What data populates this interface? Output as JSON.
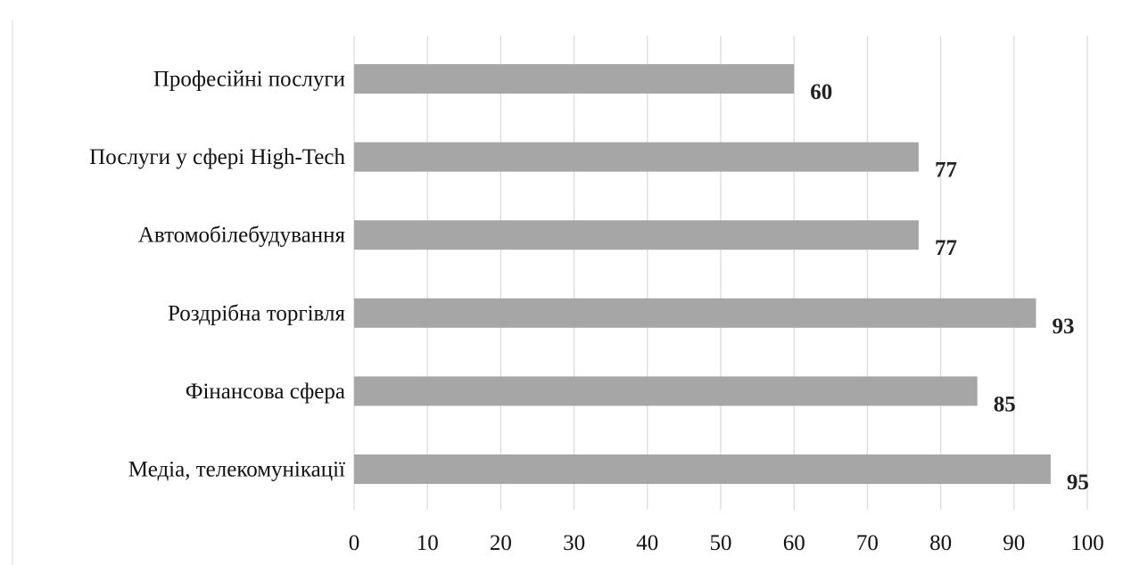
{
  "chart_data": {
    "type": "bar",
    "orientation": "horizontal",
    "categories": [
      "Професійні послуги",
      "Послуги у сфері High-Tech",
      "Автомобілебудування",
      "Роздрібна торгівля",
      "Фінансова сфера",
      "Медіа, телекомунікації"
    ],
    "values": [
      60,
      77,
      77,
      93,
      85,
      95
    ],
    "xlim": [
      0,
      100
    ],
    "xticks": [
      "0",
      "10",
      "20",
      "30",
      "40",
      "50",
      "60",
      "70",
      "80",
      "90",
      "100"
    ],
    "grid": "vertical",
    "bar_color": "#a6a6a6",
    "title": "",
    "xlabel": "",
    "ylabel": ""
  }
}
